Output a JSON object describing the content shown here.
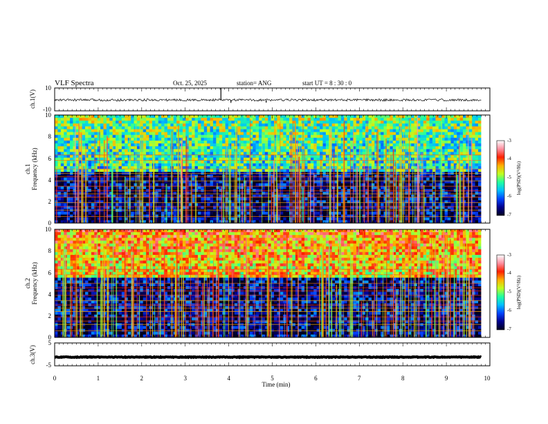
{
  "header": {
    "title": "VLF Spectra",
    "date": "Oct. 25, 2025",
    "station": "station= ANG",
    "start": "start  UT =   8  : 30 : 0"
  },
  "colors": {
    "colormap": [
      "#000020",
      "#00008f",
      "#0044ff",
      "#00c0ff",
      "#20ffa0",
      "#c0ff20",
      "#ffb000",
      "#ff2000",
      "#ff90a0",
      "#ffffff"
    ]
  },
  "chart_data": [
    {
      "type": "line",
      "name": "ch1-waveform",
      "ylabel": "ch.1(V)",
      "ylim": [
        -10,
        10
      ],
      "yticks": [
        "10",
        "-10"
      ],
      "baseline": -0.5,
      "noise_amplitude": 1.0,
      "spikes": [
        {
          "x": 3.82,
          "y": 9.8
        },
        {
          "x": 4.05,
          "y": -3.0
        },
        {
          "x": 4.86,
          "y": -2.8
        }
      ]
    },
    {
      "type": "heatmap",
      "name": "ch1-spectrogram",
      "ylabel": "ch.1\nFrequency  (kHz)",
      "ylim": [
        0,
        10
      ],
      "yticks": [
        "0",
        "2",
        "4",
        "6",
        "8",
        "10"
      ],
      "data_end_min": 9.8,
      "high_band_level": -5.4,
      "low_band_level": -6.6,
      "band_transition_khz": 4.7,
      "colorbar": {
        "label": "log(PSD)(V²/Hz)",
        "range": [
          -7,
          -3
        ],
        "ticks": [
          "-3",
          "-4",
          "-5",
          "-6",
          "-7"
        ]
      }
    },
    {
      "type": "heatmap",
      "name": "ch2-spectrogram",
      "ylabel": "ch.2\nFrequency  (kHz)",
      "ylim": [
        0,
        10
      ],
      "yticks": [
        "0",
        "2",
        "4",
        "6",
        "8",
        "10"
      ],
      "data_end_min": 9.8,
      "high_band_level": -4.5,
      "low_band_level": -6.6,
      "band_transition_khz": 5.5,
      "colorbar": {
        "label": "log(PSD)(V²/Hz)",
        "range": [
          -7,
          -3
        ],
        "ticks": [
          "-3",
          "-4",
          "-5",
          "-6",
          "-7"
        ]
      }
    },
    {
      "type": "line",
      "name": "ch3-waveform",
      "ylabel": "ch.3(V)",
      "ylim": [
        -5,
        5
      ],
      "yticks": [
        "5",
        "-5"
      ],
      "baseline": -1.2,
      "noise_amplitude": 0.15,
      "spikes": []
    }
  ],
  "xaxis": {
    "label": "Time  (min)",
    "xlim": [
      0,
      10
    ],
    "ticks": [
      "0",
      "1",
      "2",
      "3",
      "4",
      "5",
      "6",
      "7",
      "8",
      "9",
      "10"
    ]
  }
}
